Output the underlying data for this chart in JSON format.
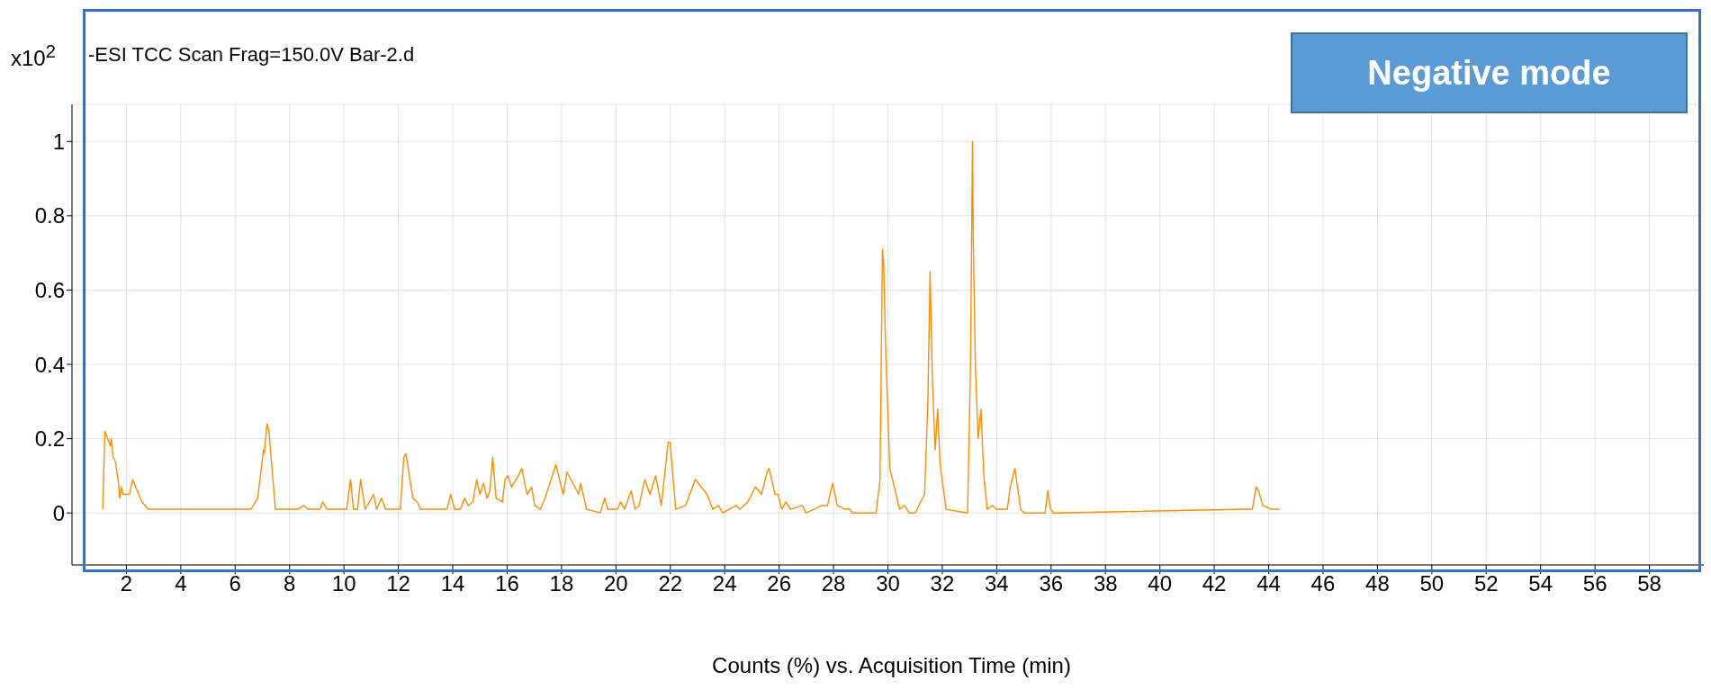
{
  "chart_data": {
    "type": "line",
    "title": "-ESI TCC Scan Frag=150.0V Bar-2.d",
    "xlabel": "Counts (%) vs. Acquisition Time (min)",
    "ylabel": "x10$^{2}$",
    "annotations": [
      "Negative mode"
    ],
    "xlim": [
      0,
      60
    ],
    "xticks": [
      2,
      4,
      6,
      8,
      10,
      12,
      14,
      16,
      18,
      20,
      22,
      24,
      26,
      28,
      30,
      32,
      34,
      36,
      38,
      40,
      42,
      44,
      46,
      48,
      50,
      52,
      54,
      56,
      58
    ],
    "ylim": [
      -0.14,
      1.1
    ],
    "yticks": [
      0,
      0.2,
      0.4,
      0.6,
      0.8,
      1
    ],
    "grid": true,
    "marker": "none",
    "line_style": "solid",
    "series": [
      {
        "color": "#ff8c00",
        "x": [
          1.13,
          1.21,
          1.41,
          1.44,
          1.51,
          1.59,
          1.71,
          1.75,
          1.82,
          1.87,
          2.11,
          2.23,
          2.4,
          2.57,
          2.8,
          6.58,
          6.83,
          7.04,
          7.07,
          7.17,
          7.24,
          7.48,
          8.3,
          8.52,
          8.68,
          9.12,
          9.22,
          9.37,
          10.1,
          10.24,
          10.35,
          10.5,
          10.61,
          10.78,
          11.09,
          11.2,
          11.38,
          11.53,
          12.07,
          12.2,
          12.28,
          12.53,
          12.69,
          12.81,
          13.79,
          13.92,
          14.07,
          14.28,
          14.44,
          14.57,
          14.74,
          14.88,
          15.0,
          15.13,
          15.26,
          15.36,
          15.47,
          15.59,
          15.83,
          15.92,
          16.03,
          16.16,
          16.41,
          16.54,
          16.73,
          16.9,
          17.01,
          17.22,
          17.39,
          17.79,
          18.06,
          18.2,
          18.49,
          18.63,
          18.7,
          18.92,
          19.42,
          19.59,
          19.7,
          20.06,
          20.17,
          20.32,
          20.56,
          20.7,
          20.85,
          21.06,
          21.25,
          21.46,
          21.67,
          21.92,
          21.99,
          22.2,
          22.56,
          22.92,
          23.35,
          23.56,
          23.77,
          23.92,
          24.42,
          24.56,
          24.85,
          25.13,
          25.35,
          25.56,
          25.63,
          25.85,
          25.96,
          26.1,
          26.25,
          26.42,
          26.85,
          26.99,
          27.28,
          27.57,
          27.78,
          27.97,
          28.14,
          28.42,
          28.6,
          28.7,
          29.57,
          29.71,
          29.8,
          29.85,
          29.93,
          30.07,
          30.43,
          30.61,
          30.78,
          31.0,
          31.35,
          31.47,
          31.55,
          31.64,
          31.74,
          31.83,
          31.92,
          32.14,
          32.93,
          33.04,
          33.11,
          33.14,
          33.22,
          33.32,
          33.42,
          33.53,
          33.65,
          33.85,
          33.99,
          34.39,
          34.5,
          34.67,
          34.88,
          35.02,
          35.78,
          35.88,
          35.98,
          36.1,
          43.24,
          43.4,
          43.54,
          43.63,
          43.78,
          44.1,
          44.4
        ],
        "values": [
          0.01,
          0.22,
          0.18,
          0.2,
          0.15,
          0.14,
          0.08,
          0.04,
          0.07,
          0.05,
          0.05,
          0.09,
          0.06,
          0.03,
          0.01,
          0.01,
          0.04,
          0.17,
          0.16,
          0.24,
          0.22,
          0.01,
          0.01,
          0.02,
          0.01,
          0.01,
          0.03,
          0.01,
          0.01,
          0.09,
          0.01,
          0.01,
          0.09,
          0.01,
          0.05,
          0.01,
          0.04,
          0.01,
          0.01,
          0.15,
          0.16,
          0.04,
          0.03,
          0.01,
          0.01,
          0.05,
          0.01,
          0.01,
          0.04,
          0.02,
          0.03,
          0.09,
          0.05,
          0.08,
          0.04,
          0.06,
          0.15,
          0.04,
          0.03,
          0.09,
          0.1,
          0.07,
          0.1,
          0.12,
          0.05,
          0.07,
          0.02,
          0.01,
          0.04,
          0.13,
          0.05,
          0.11,
          0.07,
          0.05,
          0.08,
          0.01,
          0.0,
          0.04,
          0.01,
          0.01,
          0.03,
          0.01,
          0.06,
          0.01,
          0.02,
          0.09,
          0.05,
          0.1,
          0.02,
          0.19,
          0.19,
          0.01,
          0.02,
          0.09,
          0.05,
          0.01,
          0.02,
          0.0,
          0.02,
          0.01,
          0.03,
          0.07,
          0.05,
          0.11,
          0.12,
          0.05,
          0.05,
          0.01,
          0.03,
          0.01,
          0.02,
          0.0,
          0.01,
          0.02,
          0.02,
          0.08,
          0.02,
          0.01,
          0.01,
          0.0,
          0.0,
          0.09,
          0.71,
          0.66,
          0.41,
          0.12,
          0.01,
          0.02,
          0.0,
          0.0,
          0.05,
          0.3,
          0.65,
          0.35,
          0.17,
          0.28,
          0.13,
          0.01,
          0.0,
          0.41,
          1.0,
          0.73,
          0.39,
          0.2,
          0.28,
          0.1,
          0.01,
          0.02,
          0.01,
          0.01,
          0.07,
          0.12,
          0.01,
          0.0,
          0.0,
          0.06,
          0.01,
          0.0,
          0.01,
          0.01,
          0.07,
          0.06,
          0.02,
          0.01,
          0.01
        ]
      }
    ]
  }
}
